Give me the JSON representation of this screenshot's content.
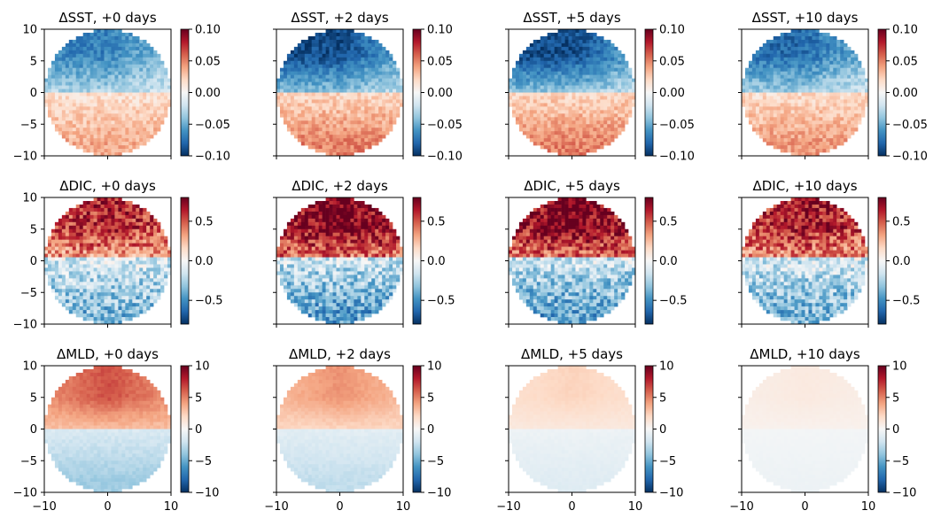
{
  "figure": {
    "rows": 3,
    "cols": 4,
    "colormap": "RdBu_r"
  },
  "chart_data": [
    {
      "type": "heatmap",
      "title": "ΔSST, +0 days",
      "variable": "SST",
      "lag_days": 0,
      "pattern": "sst",
      "intensity": 0.75,
      "xlim": [
        -10,
        10
      ],
      "ylim": [
        -10,
        10
      ],
      "xticks": [
        -10,
        0,
        10
      ],
      "yticks": [
        "10",
        "5",
        "0",
        "−5",
        "−10"
      ],
      "show_xticklabels": false,
      "show_yticklabels": true,
      "clim": [
        -0.1,
        0.1
      ],
      "cbar_ticks": [
        "0.10",
        "0.05",
        "0.00",
        "−0.05",
        "−0.10"
      ],
      "cbar_tick_values": [
        0.1,
        0.05,
        0,
        -0.05,
        -0.1
      ]
    },
    {
      "type": "heatmap",
      "title": "ΔSST, +2 days",
      "variable": "SST",
      "lag_days": 2,
      "pattern": "sst",
      "intensity": 1.0,
      "xlim": [
        -10,
        10
      ],
      "ylim": [
        -10,
        10
      ],
      "xticks": [
        -10,
        0,
        10
      ],
      "yticks": [
        "10",
        "5",
        "0",
        "−5",
        "−10"
      ],
      "show_xticklabels": false,
      "show_yticklabels": false,
      "clim": [
        -0.1,
        0.1
      ],
      "cbar_ticks": [
        "0.10",
        "0.05",
        "0.00",
        "−0.05",
        "−0.10"
      ],
      "cbar_tick_values": [
        0.1,
        0.05,
        0,
        -0.05,
        -0.1
      ]
    },
    {
      "type": "heatmap",
      "title": "ΔSST, +5 days",
      "variable": "SST",
      "lag_days": 5,
      "pattern": "sst",
      "intensity": 1.0,
      "xlim": [
        -10,
        10
      ],
      "ylim": [
        -10,
        10
      ],
      "xticks": [
        -10,
        0,
        10
      ],
      "yticks": [
        "10",
        "5",
        "0",
        "−5",
        "−10"
      ],
      "show_xticklabels": false,
      "show_yticklabels": false,
      "clim": [
        -0.1,
        0.1
      ],
      "cbar_ticks": [
        "0.10",
        "0.05",
        "0.00",
        "−0.05",
        "−0.10"
      ],
      "cbar_tick_values": [
        0.1,
        0.05,
        0,
        -0.05,
        -0.1
      ]
    },
    {
      "type": "heatmap",
      "title": "ΔSST, +10 days",
      "variable": "SST",
      "lag_days": 10,
      "pattern": "sst",
      "intensity": 0.85,
      "xlim": [
        -10,
        10
      ],
      "ylim": [
        -10,
        10
      ],
      "xticks": [
        -10,
        0,
        10
      ],
      "yticks": [
        "10",
        "5",
        "0",
        "−5",
        "−10"
      ],
      "show_xticklabels": false,
      "show_yticklabels": false,
      "clim": [
        -0.1,
        0.1
      ],
      "cbar_ticks": [
        "0.10",
        "0.05",
        "0.00",
        "−0.05",
        "−0.10"
      ],
      "cbar_tick_values": [
        0.1,
        0.05,
        0,
        -0.05,
        -0.1
      ]
    },
    {
      "type": "heatmap",
      "title": "ΔDIC, +0 days",
      "variable": "DIC",
      "lag_days": 0,
      "pattern": "dic",
      "intensity": 0.8,
      "xlim": [
        -10,
        10
      ],
      "ylim": [
        -10,
        10
      ],
      "xticks": [
        -10,
        0,
        10
      ],
      "yticks": [
        "10",
        "5",
        "0",
        "−5",
        "−10"
      ],
      "show_xticklabels": false,
      "show_yticklabels": true,
      "clim": [
        -0.8,
        0.8
      ],
      "cbar_ticks": [
        "0.5",
        "0.0",
        "−0.5"
      ],
      "cbar_tick_values": [
        0.5,
        0,
        -0.5
      ]
    },
    {
      "type": "heatmap",
      "title": "ΔDIC, +2 days",
      "variable": "DIC",
      "lag_days": 2,
      "pattern": "dic",
      "intensity": 1.0,
      "xlim": [
        -10,
        10
      ],
      "ylim": [
        -10,
        10
      ],
      "xticks": [
        -10,
        0,
        10
      ],
      "yticks": [
        "10",
        "5",
        "0",
        "−5",
        "−10"
      ],
      "show_xticklabels": false,
      "show_yticklabels": false,
      "clim": [
        -0.8,
        0.8
      ],
      "cbar_ticks": [
        "0.5",
        "0.0",
        "−0.5"
      ],
      "cbar_tick_values": [
        0.5,
        0,
        -0.5
      ]
    },
    {
      "type": "heatmap",
      "title": "ΔDIC, +5 days",
      "variable": "DIC",
      "lag_days": 5,
      "pattern": "dic",
      "intensity": 1.0,
      "xlim": [
        -10,
        10
      ],
      "ylim": [
        -10,
        10
      ],
      "xticks": [
        -10,
        0,
        10
      ],
      "yticks": [
        "10",
        "5",
        "0",
        "−5",
        "−10"
      ],
      "show_xticklabels": false,
      "show_yticklabels": false,
      "clim": [
        -0.8,
        0.8
      ],
      "cbar_ticks": [
        "0.5",
        "0.0",
        "−0.5"
      ],
      "cbar_tick_values": [
        0.5,
        0,
        -0.5
      ]
    },
    {
      "type": "heatmap",
      "title": "ΔDIC, +10 days",
      "variable": "DIC",
      "lag_days": 10,
      "pattern": "dic",
      "intensity": 0.85,
      "xlim": [
        -10,
        10
      ],
      "ylim": [
        -10,
        10
      ],
      "xticks": [
        -10,
        0,
        10
      ],
      "yticks": [
        "10",
        "5",
        "0",
        "−5",
        "−10"
      ],
      "show_xticklabels": false,
      "show_yticklabels": false,
      "clim": [
        -0.8,
        0.8
      ],
      "cbar_ticks": [
        "0.5",
        "0.0",
        "−0.5"
      ],
      "cbar_tick_values": [
        0.5,
        0,
        -0.5
      ]
    },
    {
      "type": "heatmap",
      "title": "ΔMLD, +0 days",
      "variable": "MLD",
      "lag_days": 0,
      "pattern": "mld",
      "intensity": 1.0,
      "xlim": [
        -10,
        10
      ],
      "ylim": [
        -10,
        10
      ],
      "xticks": [
        -10,
        0,
        10
      ],
      "xticklabels": [
        "−10",
        "0",
        "10"
      ],
      "yticks": [
        "10",
        "5",
        "0",
        "−5",
        "−10"
      ],
      "show_xticklabels": true,
      "show_yticklabels": true,
      "clim": [
        -10,
        10
      ],
      "cbar_ticks": [
        "10",
        "5",
        "0",
        "−5",
        "−10"
      ],
      "cbar_tick_values": [
        10,
        5,
        0,
        -5,
        -10
      ]
    },
    {
      "type": "heatmap",
      "title": "ΔMLD, +2 days",
      "variable": "MLD",
      "lag_days": 2,
      "pattern": "mld",
      "intensity": 0.7,
      "xlim": [
        -10,
        10
      ],
      "ylim": [
        -10,
        10
      ],
      "xticks": [
        -10,
        0,
        10
      ],
      "xticklabels": [
        "−10",
        "0",
        "10"
      ],
      "yticks": [
        "10",
        "5",
        "0",
        "−5",
        "−10"
      ],
      "show_xticklabels": true,
      "show_yticklabels": false,
      "clim": [
        -10,
        10
      ],
      "cbar_ticks": [
        "10",
        "5",
        "0",
        "−5",
        "−10"
      ],
      "cbar_tick_values": [
        10,
        5,
        0,
        -5,
        -10
      ]
    },
    {
      "type": "heatmap",
      "title": "ΔMLD, +5 days",
      "variable": "MLD",
      "lag_days": 5,
      "pattern": "mld",
      "intensity": 0.35,
      "xlim": [
        -10,
        10
      ],
      "ylim": [
        -10,
        10
      ],
      "xticks": [
        -10,
        0,
        10
      ],
      "xticklabels": [
        "−10",
        "0",
        "10"
      ],
      "yticks": [
        "10",
        "5",
        "0",
        "−5",
        "−10"
      ],
      "show_xticklabels": true,
      "show_yticklabels": false,
      "clim": [
        -10,
        10
      ],
      "cbar_ticks": [
        "10",
        "5",
        "0",
        "−5",
        "−10"
      ],
      "cbar_tick_values": [
        10,
        5,
        0,
        -5,
        -10
      ]
    },
    {
      "type": "heatmap",
      "title": "ΔMLD, +10 days",
      "variable": "MLD",
      "lag_days": 10,
      "pattern": "mld",
      "intensity": 0.15,
      "xlim": [
        -10,
        10
      ],
      "ylim": [
        -10,
        10
      ],
      "xticks": [
        -10,
        0,
        10
      ],
      "xticklabels": [
        "−10",
        "0",
        "10"
      ],
      "yticks": [
        "10",
        "5",
        "0",
        "−5",
        "−10"
      ],
      "show_xticklabels": true,
      "show_yticklabels": false,
      "clim": [
        -10,
        10
      ],
      "cbar_ticks": [
        "10",
        "5",
        "0",
        "−5",
        "−10"
      ],
      "cbar_tick_values": [
        10,
        5,
        0,
        -5,
        -10
      ]
    }
  ]
}
